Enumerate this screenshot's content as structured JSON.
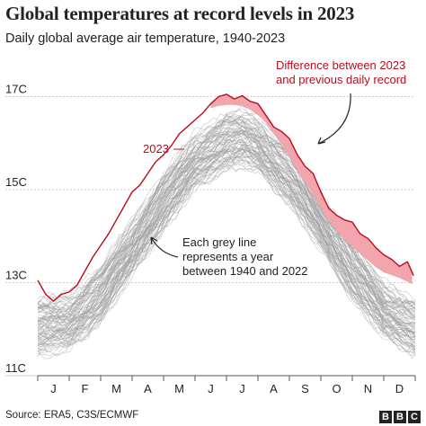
{
  "header": {
    "title": "Global temperatures at record levels in 2023",
    "subtitle": "Daily global average air temperature, 1940-2023"
  },
  "footer": {
    "source": "Source: ERA5, C3S/ECMWF",
    "logo_letters": [
      "B",
      "B",
      "C"
    ]
  },
  "colors": {
    "record_line": "#b80c1f",
    "record_fill": "#f2a5ad",
    "grey_lines": "#9a9a9a",
    "grid": "#cccccc",
    "text": "#222222"
  },
  "chart_data": {
    "type": "line",
    "title": "Global temperatures at record levels in 2023",
    "subtitle": "Daily global average air temperature, 1940-2023",
    "x_unit": "month",
    "xlim": [
      0,
      12
    ],
    "ylim": [
      11,
      17.3
    ],
    "y_ticks": [
      11,
      13,
      15,
      17
    ],
    "y_tick_labels": [
      "11C",
      "13C",
      "15C",
      "17C"
    ],
    "month_labels": [
      "J",
      "F",
      "M",
      "A",
      "M",
      "J",
      "J",
      "A",
      "S",
      "O",
      "N",
      "D"
    ],
    "grid": "horizontal",
    "series": [
      {
        "name": "2023",
        "x": [
          0.0,
          0.25,
          0.5,
          0.75,
          1.0,
          1.25,
          1.5,
          1.75,
          2.0,
          2.25,
          2.5,
          2.75,
          3.0,
          3.25,
          3.5,
          3.75,
          4.0,
          4.25,
          4.5,
          4.75,
          5.0,
          5.25,
          5.5,
          5.75,
          6.0,
          6.25,
          6.5,
          6.75,
          7.0,
          7.25,
          7.5,
          7.75,
          8.0,
          8.25,
          8.5,
          8.75,
          9.0,
          9.25,
          9.5,
          9.75,
          10.0,
          10.25,
          10.5,
          10.75,
          11.0,
          11.25,
          11.5,
          11.75,
          11.95
        ],
        "y": [
          13.05,
          12.75,
          12.6,
          12.75,
          12.8,
          12.95,
          13.25,
          13.55,
          13.8,
          14.05,
          14.35,
          14.65,
          14.95,
          15.1,
          15.35,
          15.6,
          15.75,
          15.95,
          16.2,
          16.35,
          16.5,
          16.65,
          16.85,
          17.0,
          17.05,
          16.95,
          17.02,
          16.9,
          16.85,
          16.6,
          16.35,
          16.25,
          16.1,
          15.75,
          15.5,
          15.35,
          14.95,
          14.6,
          14.45,
          14.35,
          14.3,
          14.05,
          13.95,
          13.75,
          13.6,
          13.5,
          13.35,
          13.45,
          13.15
        ]
      },
      {
        "name": "Previous daily record",
        "x": [
          0.0,
          0.5,
          1.0,
          1.5,
          2.0,
          2.5,
          3.0,
          3.5,
          4.0,
          4.5,
          5.0,
          5.5,
          5.75,
          6.0,
          6.25,
          6.5,
          6.75,
          7.0,
          7.25,
          7.5,
          7.75,
          8.0,
          8.25,
          8.5,
          8.75,
          9.0,
          9.25,
          9.5,
          9.75,
          10.0,
          10.25,
          10.5,
          10.75,
          11.0,
          11.25,
          11.5,
          11.75,
          11.95
        ],
        "y": [
          13.05,
          12.6,
          12.8,
          13.25,
          13.8,
          14.35,
          14.95,
          15.35,
          15.75,
          16.2,
          16.5,
          16.75,
          16.8,
          16.82,
          16.82,
          16.8,
          16.72,
          16.6,
          16.45,
          16.2,
          15.98,
          15.72,
          15.42,
          15.15,
          14.9,
          14.6,
          14.32,
          14.12,
          13.92,
          13.78,
          13.62,
          13.48,
          13.33,
          13.22,
          13.16,
          13.1,
          13.02,
          12.95
        ]
      }
    ],
    "background_series": {
      "label": "1940-2022",
      "years": [
        1940,
        2022
      ],
      "mean_profile": {
        "x": [
          0.0,
          1.0,
          2.0,
          3.0,
          4.0,
          5.0,
          6.0,
          6.5,
          7.0,
          8.0,
          9.0,
          10.0,
          11.0,
          12.0
        ],
        "y": [
          12.05,
          12.15,
          12.75,
          13.75,
          14.75,
          15.6,
          16.05,
          16.1,
          15.95,
          15.3,
          14.3,
          13.25,
          12.4,
          12.05
        ]
      },
      "spread": 0.55
    },
    "annotations": [
      {
        "text": [
          "2023"
        ]
      },
      {
        "text": [
          "Difference between 2023",
          "and previous daily record"
        ]
      },
      {
        "text": [
          "Each grey line",
          "represents a year",
          "between 1940 and 2022"
        ]
      }
    ]
  }
}
